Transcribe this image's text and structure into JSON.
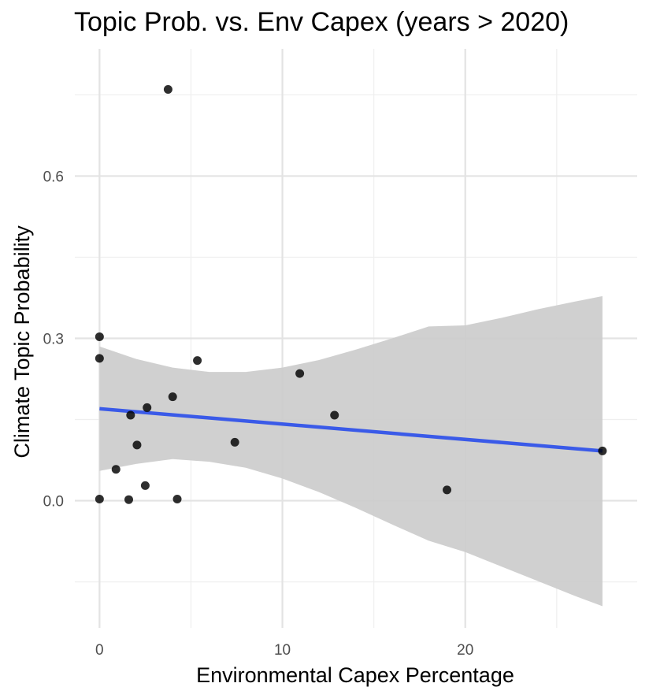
{
  "chart_data": {
    "type": "scatter",
    "title": "Topic Prob. vs. Env Capex (years > 2020)",
    "xlabel": "Environmental Capex Percentage",
    "ylabel": "Climate Topic Probability",
    "xlim": [
      -1.35,
      29.4
    ],
    "ylim": [
      -0.235,
      0.835
    ],
    "x_ticks": [
      0,
      10,
      20
    ],
    "x_tick_labels": [
      "0",
      "10",
      "20"
    ],
    "x_minor_ticks": [
      5,
      15,
      25
    ],
    "y_ticks": [
      0.0,
      0.3,
      0.6
    ],
    "y_tick_labels": [
      "0.0",
      "0.3",
      "0.6"
    ],
    "y_minor_ticks": [
      -0.15,
      0.15,
      0.45,
      0.75
    ],
    "grid": true,
    "legend": "none",
    "points": {
      "x": [
        3.75,
        0.0,
        0.0,
        5.35,
        10.95,
        4.0,
        2.6,
        1.7,
        12.85,
        2.05,
        7.4,
        0.9,
        27.5,
        2.5,
        0.0,
        1.6,
        4.25,
        19.0
      ],
      "y": [
        0.76,
        0.303,
        0.263,
        0.259,
        0.235,
        0.192,
        0.172,
        0.158,
        0.158,
        0.103,
        0.108,
        0.058,
        0.092,
        0.028,
        0.003,
        0.002,
        0.003,
        0.02
      ]
    },
    "fit": {
      "method": "linear",
      "x": [
        0.0,
        27.5
      ],
      "y": [
        0.17,
        0.092
      ]
    },
    "confidence_band": {
      "x": [
        0.0,
        2.0,
        4.0,
        6.0,
        8.0,
        10.0,
        12.0,
        14.0,
        16.0,
        18.0,
        20.0,
        22.0,
        24.0,
        26.0,
        27.5
      ],
      "upper": [
        0.285,
        0.262,
        0.246,
        0.238,
        0.238,
        0.246,
        0.26,
        0.279,
        0.3,
        0.322,
        0.324,
        0.338,
        0.354,
        0.368,
        0.378
      ],
      "lower": [
        0.055,
        0.068,
        0.077,
        0.072,
        0.061,
        0.041,
        0.016,
        -0.013,
        -0.044,
        -0.074,
        -0.095,
        -0.122,
        -0.149,
        -0.176,
        -0.195
      ]
    },
    "colors": {
      "points": "#000000",
      "fit_line": "#3a5ae8",
      "band": "#cccccc",
      "grid_major": "#e3e3e3",
      "grid_minor": "#efefef",
      "tick_label": "#4d4d4d",
      "text": "#000000"
    }
  }
}
